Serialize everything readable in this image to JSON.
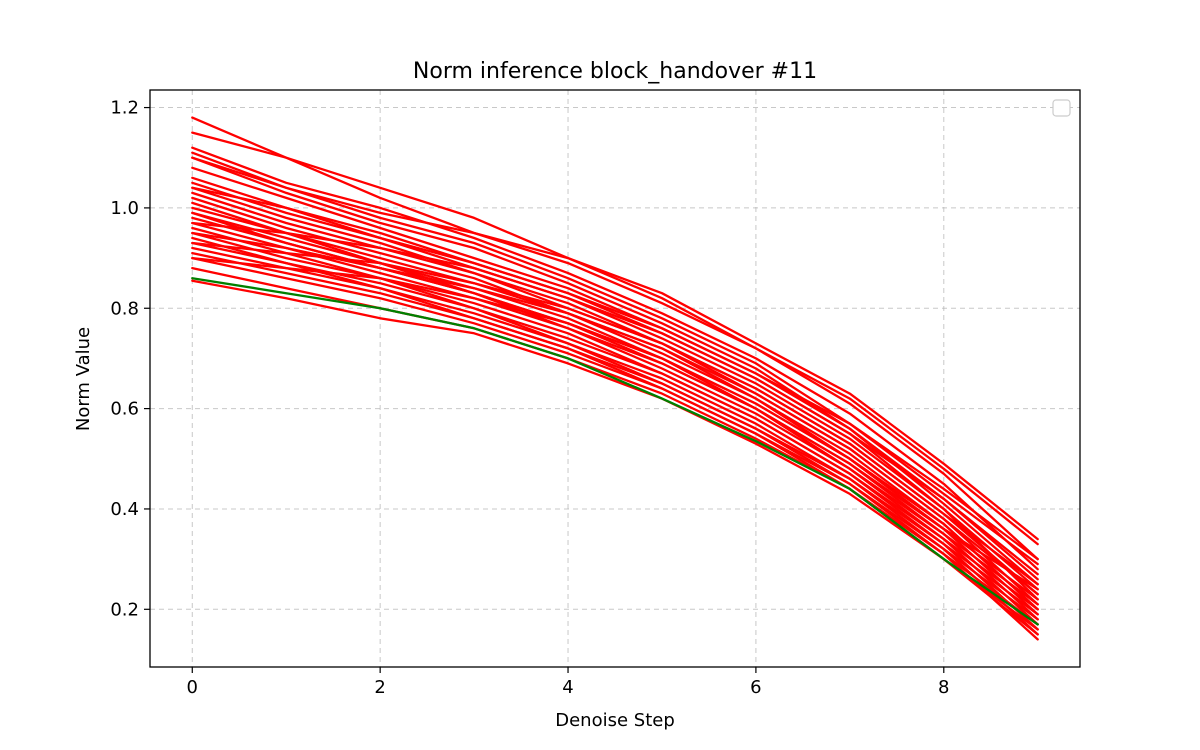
{
  "chart_data": {
    "type": "line",
    "title": "Norm inference block_handover #11",
    "xlabel": "Denoise Step",
    "ylabel": "Norm Value",
    "xlim": [
      -0.45,
      9.45
    ],
    "ylim": [
      0.085,
      1.235
    ],
    "x_ticks": [
      0,
      2,
      4,
      6,
      8
    ],
    "y_ticks": [
      0.2,
      0.4,
      0.6,
      0.8,
      1.0,
      1.2
    ],
    "x_tick_labels": [
      "0",
      "2",
      "4",
      "6",
      "8"
    ],
    "y_tick_labels": [
      "0.2",
      "0.4",
      "0.6",
      "0.8",
      "1.0",
      "1.2"
    ],
    "grid": true,
    "legend": "upper right (empty)",
    "x": [
      0,
      1,
      2,
      3,
      4,
      5,
      6,
      7,
      8,
      9
    ],
    "series": [
      {
        "color": "#ff0000",
        "values": [
          1.18,
          1.1,
          1.04,
          0.98,
          0.9,
          0.83,
          0.73,
          0.63,
          0.49,
          0.34
        ]
      },
      {
        "color": "#ff0000",
        "values": [
          1.15,
          1.1,
          1.02,
          0.95,
          0.89,
          0.81,
          0.72,
          0.61,
          0.47,
          0.3
        ]
      },
      {
        "color": "#ff0000",
        "values": [
          1.12,
          1.05,
          1.0,
          0.94,
          0.87,
          0.79,
          0.7,
          0.59,
          0.45,
          0.28
        ]
      },
      {
        "color": "#ff0000",
        "values": [
          1.11,
          1.04,
          0.98,
          0.93,
          0.86,
          0.78,
          0.69,
          0.57,
          0.43,
          0.29
        ]
      },
      {
        "color": "#ff0000",
        "values": [
          1.1,
          1.03,
          0.97,
          0.92,
          0.85,
          0.77,
          0.68,
          0.56,
          0.42,
          0.26
        ]
      },
      {
        "color": "#ff0000",
        "values": [
          1.08,
          1.02,
          0.96,
          0.9,
          0.84,
          0.76,
          0.67,
          0.56,
          0.41,
          0.25
        ]
      },
      {
        "color": "#ff0000",
        "values": [
          1.06,
          1.0,
          0.95,
          0.89,
          0.83,
          0.75,
          0.66,
          0.55,
          0.4,
          0.24
        ]
      },
      {
        "color": "#ff0000",
        "values": [
          1.05,
          0.99,
          0.94,
          0.88,
          0.82,
          0.74,
          0.65,
          0.54,
          0.4,
          0.22
        ]
      },
      {
        "color": "#ff0000",
        "values": [
          1.04,
          0.98,
          0.93,
          0.87,
          0.81,
          0.73,
          0.64,
          0.53,
          0.39,
          0.23
        ]
      },
      {
        "color": "#ff0000",
        "values": [
          1.03,
          0.97,
          0.92,
          0.87,
          0.8,
          0.73,
          0.63,
          0.52,
          0.38,
          0.21
        ]
      },
      {
        "color": "#ff0000",
        "values": [
          1.02,
          0.96,
          0.91,
          0.86,
          0.79,
          0.72,
          0.62,
          0.51,
          0.37,
          0.2
        ]
      },
      {
        "color": "#ff0000",
        "values": [
          1.01,
          0.95,
          0.9,
          0.85,
          0.79,
          0.71,
          0.62,
          0.5,
          0.36,
          0.22
        ]
      },
      {
        "color": "#ff0000",
        "values": [
          1.0,
          0.95,
          0.89,
          0.84,
          0.78,
          0.7,
          0.61,
          0.5,
          0.36,
          0.19
        ]
      },
      {
        "color": "#ff0000",
        "values": [
          0.99,
          0.94,
          0.89,
          0.83,
          0.77,
          0.69,
          0.6,
          0.49,
          0.35,
          0.21
        ]
      },
      {
        "color": "#ff0000",
        "values": [
          0.98,
          0.93,
          0.88,
          0.83,
          0.76,
          0.69,
          0.6,
          0.48,
          0.35,
          0.18
        ]
      },
      {
        "color": "#ff0000",
        "values": [
          0.97,
          0.92,
          0.87,
          0.82,
          0.76,
          0.68,
          0.59,
          0.48,
          0.34,
          0.2
        ]
      },
      {
        "color": "#ff0000",
        "values": [
          0.96,
          0.91,
          0.86,
          0.81,
          0.75,
          0.67,
          0.58,
          0.47,
          0.34,
          0.17
        ]
      },
      {
        "color": "#ff0000",
        "values": [
          0.95,
          0.9,
          0.86,
          0.8,
          0.74,
          0.67,
          0.58,
          0.47,
          0.33,
          0.19
        ]
      },
      {
        "color": "#ff0000",
        "values": [
          0.94,
          0.89,
          0.85,
          0.8,
          0.73,
          0.66,
          0.57,
          0.46,
          0.33,
          0.16
        ]
      },
      {
        "color": "#ff0000",
        "values": [
          0.93,
          0.89,
          0.84,
          0.79,
          0.73,
          0.65,
          0.56,
          0.46,
          0.32,
          0.18
        ]
      },
      {
        "color": "#ff0000",
        "values": [
          0.92,
          0.88,
          0.84,
          0.78,
          0.72,
          0.65,
          0.56,
          0.45,
          0.32,
          0.15
        ]
      },
      {
        "color": "#ff0000",
        "values": [
          0.91,
          0.87,
          0.83,
          0.78,
          0.72,
          0.64,
          0.55,
          0.45,
          0.31,
          0.17
        ]
      },
      {
        "color": "#ff0000",
        "values": [
          0.9,
          0.86,
          0.82,
          0.77,
          0.71,
          0.64,
          0.55,
          0.44,
          0.31,
          0.14
        ]
      },
      {
        "color": "#ff0000",
        "values": [
          0.88,
          0.84,
          0.8,
          0.76,
          0.7,
          0.63,
          0.54,
          0.44,
          0.3,
          0.16
        ]
      },
      {
        "color": "#ff0000",
        "values": [
          0.855,
          0.82,
          0.78,
          0.75,
          0.69,
          0.62,
          0.53,
          0.43,
          0.3,
          0.15
        ]
      },
      {
        "color": "#ff0000",
        "values": [
          1.04,
          1.0,
          0.94,
          0.89,
          0.83,
          0.76,
          0.67,
          0.57,
          0.44,
          0.3
        ]
      },
      {
        "color": "#ff0000",
        "values": [
          0.97,
          0.95,
          0.92,
          0.88,
          0.82,
          0.75,
          0.66,
          0.55,
          0.42,
          0.27
        ]
      },
      {
        "color": "#ff0000",
        "values": [
          0.93,
          0.91,
          0.89,
          0.85,
          0.8,
          0.73,
          0.64,
          0.53,
          0.39,
          0.25
        ]
      },
      {
        "color": "#ff0000",
        "values": [
          0.9,
          0.88,
          0.86,
          0.82,
          0.77,
          0.7,
          0.61,
          0.5,
          0.37,
          0.2
        ]
      },
      {
        "color": "#ff0000",
        "values": [
          1.1,
          1.04,
          0.99,
          0.95,
          0.9,
          0.82,
          0.72,
          0.62,
          0.48,
          0.33
        ]
      },
      {
        "color": "#ff0000",
        "values": [
          0.95,
          0.92,
          0.88,
          0.84,
          0.79,
          0.72,
          0.63,
          0.52,
          0.38,
          0.23
        ]
      },
      {
        "color": "#ff0000",
        "values": [
          0.99,
          0.93,
          0.88,
          0.83,
          0.77,
          0.7,
          0.6,
          0.49,
          0.36,
          0.24
        ]
      },
      {
        "color": "#008000",
        "values": [
          0.86,
          0.83,
          0.8,
          0.76,
          0.7,
          0.62,
          0.535,
          0.44,
          0.3,
          0.17
        ]
      }
    ]
  }
}
